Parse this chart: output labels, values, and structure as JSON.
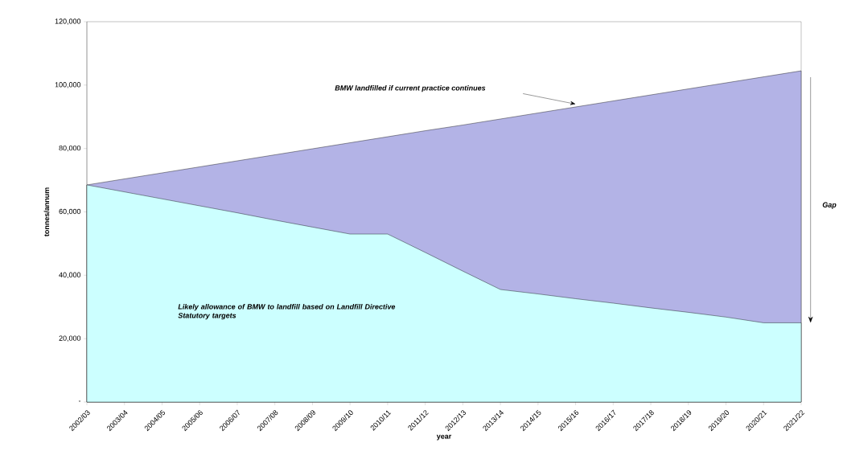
{
  "chart_data": {
    "type": "area",
    "categories": [
      "2002/03",
      "2003/04",
      "2004/05",
      "2005/06",
      "2006/07",
      "2007/08",
      "2008/09",
      "2009/10",
      "2010/11",
      "2011/12",
      "2012/13",
      "2013/14",
      "2014/15",
      "2015/16",
      "2016/17",
      "2017/18",
      "2018/19",
      "2019/20",
      "2020/21",
      "2021/22"
    ],
    "series": [
      {
        "color": "#b3b3e6",
        "values": [
          68500,
          70400,
          72300,
          74200,
          76100,
          78000,
          79900,
          81800,
          83700,
          85600,
          87400,
          89300,
          91200,
          93100,
          95000,
          96900,
          98800,
          100700,
          102600,
          104500
        ]
      },
      {
        "color": "#ccffff",
        "values": [
          68500,
          66300,
          64100,
          61900,
          59700,
          57400,
          55200,
          53000,
          53000,
          47200,
          41300,
          35500,
          34100,
          32600,
          31200,
          29700,
          28300,
          26800,
          25000,
          25000
        ]
      }
    ],
    "xlabel": "year",
    "ylabel": "tonnes/annum",
    "ylim": [
      0,
      120000
    ],
    "yticks": [
      {
        "value": 0,
        "label": "-"
      },
      {
        "value": 20000,
        "label": "20,000"
      },
      {
        "value": 40000,
        "label": "40,000"
      },
      {
        "value": 60000,
        "label": "60,000"
      },
      {
        "value": 80000,
        "label": "80,000"
      },
      {
        "value": 100000,
        "label": "100,000"
      },
      {
        "value": 120000,
        "label": "120,000"
      }
    ],
    "annotations": [
      "BMW landfilled if current practice continues",
      "Likely allowance of BMW to landfill based on Landfill Directive Statutory targets",
      "Gap"
    ],
    "grid": false
  }
}
